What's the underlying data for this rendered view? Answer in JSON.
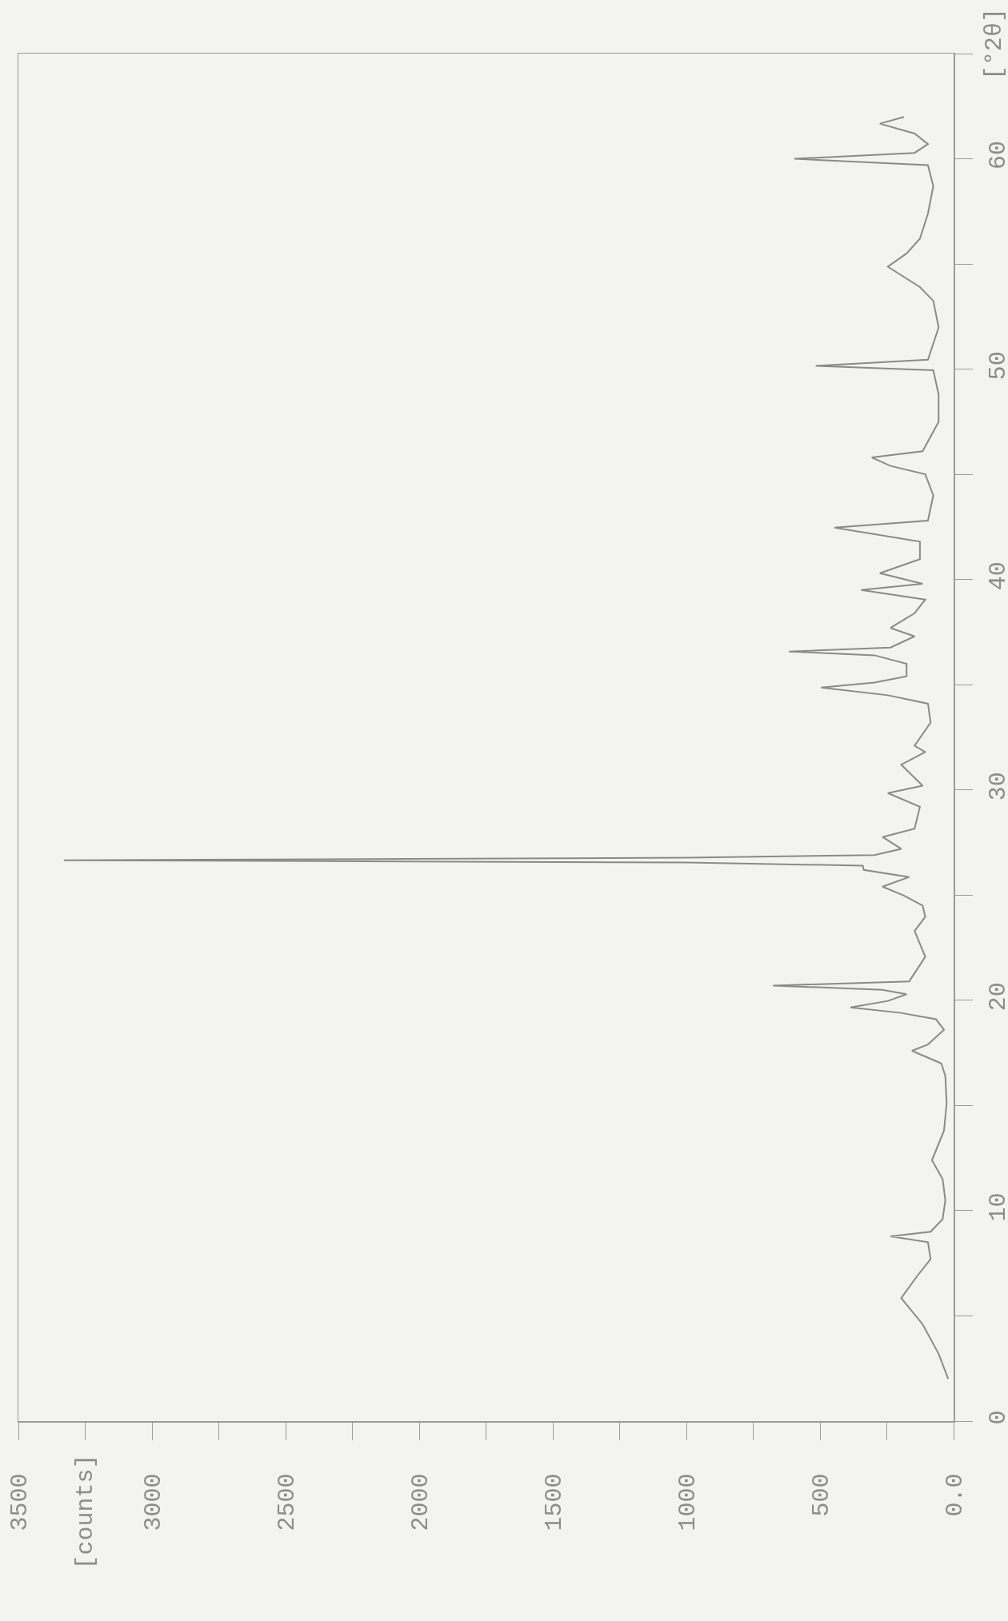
{
  "chart_data": {
    "type": "line",
    "annotations": [
      "[counts]"
    ],
    "ylabel": "[°2θ]",
    "color": "#8a8a8a",
    "grid": false,
    "marker": "none",
    "line_style": "solid",
    "xlim": [
      3500,
      0
    ],
    "ylim": [
      0,
      65
    ],
    "xticks": [
      {
        "value": 0,
        "label": "0.0"
      },
      500,
      1000,
      1500,
      2000,
      2500,
      3000,
      3500
    ],
    "yticks": [
      0,
      10,
      20,
      30,
      40,
      50,
      60
    ],
    "x": [
      20,
      56,
      116,
      196,
      136,
      86,
      96,
      236,
      86,
      41,
      31,
      41,
      81,
      36,
      26,
      31,
      46,
      156,
      96,
      36,
      66,
      196,
      386,
      246,
      176,
      266,
      676,
      166,
      106,
      146,
      106,
      116,
      186,
      266,
      166,
      336,
      340,
      1000,
      2380,
      3330,
      2380,
      1000,
      296,
      196,
      266,
      146,
      126,
      246,
      116,
      196,
      106,
      146,
      86,
      96,
      246,
      496,
      296,
      176,
      176,
      296,
      616,
      236,
      146,
      236,
      146,
      106,
      346,
      116,
      276,
      126,
      126,
      446,
      96,
      76,
      106,
      236,
      306,
      116,
      56,
      56,
      76,
      516,
      96,
      56,
      76,
      126,
      246,
      176,
      126,
      96,
      76,
      96,
      596,
      146,
      96,
      146,
      276,
      186
    ],
    "values": [
      2.0,
      3.2,
      4.6,
      5.85,
      6.9,
      7.7,
      8.5,
      8.78,
      9.0,
      9.6,
      10.5,
      11.5,
      12.4,
      13.8,
      15.1,
      16.4,
      17.0,
      17.6,
      17.9,
      18.6,
      19.1,
      19.4,
      19.66,
      19.97,
      20.29,
      20.5,
      20.7,
      20.9,
      22.07,
      23.3,
      23.97,
      24.5,
      24.98,
      25.4,
      25.86,
      26.2,
      26.4,
      26.55,
      26.62,
      26.66,
      26.7,
      26.78,
      26.9,
      27.2,
      27.76,
      28.16,
      29.2,
      29.85,
      30.2,
      31.2,
      31.8,
      32.1,
      33.2,
      34.1,
      34.5,
      34.87,
      35.1,
      35.4,
      36.0,
      36.4,
      36.58,
      36.77,
      37.3,
      37.7,
      38.4,
      39.05,
      39.5,
      39.8,
      40.3,
      40.97,
      41.8,
      42.47,
      42.8,
      44.0,
      45.0,
      45.4,
      45.8,
      46.1,
      47.5,
      48.8,
      49.95,
      50.16,
      50.45,
      51.98,
      53.25,
      53.9,
      54.87,
      55.5,
      56.2,
      57.4,
      58.7,
      59.7,
      60.0,
      60.28,
      60.7,
      61.2,
      61.67,
      61.99
    ]
  }
}
